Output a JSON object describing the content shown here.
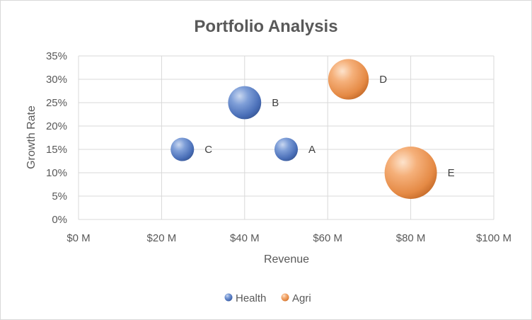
{
  "chart_data": {
    "type": "bubble",
    "title": "Portfolio Analysis",
    "xlabel": "Revenue",
    "ylabel": "Growth Rate",
    "xlim": [
      0,
      100
    ],
    "ylim": [
      0,
      0.35
    ],
    "x_ticks": [
      0,
      20,
      40,
      60,
      80,
      100
    ],
    "x_tick_labels": [
      "$0 M",
      "$20 M",
      "$40 M",
      "$60 M",
      "$80 M",
      "$100 M"
    ],
    "y_ticks": [
      0,
      0.05,
      0.1,
      0.15,
      0.2,
      0.25,
      0.3,
      0.35
    ],
    "y_tick_labels": [
      "0%",
      "5%",
      "10%",
      "15%",
      "20%",
      "25%",
      "30%",
      "35%"
    ],
    "grid": true,
    "legend_position": "bottom",
    "series": [
      {
        "name": "Health",
        "color": "#4472c4",
        "points": [
          {
            "label": "A",
            "x": 50,
            "y": 0.15,
            "size": 4
          },
          {
            "label": "B",
            "x": 40,
            "y": 0.25,
            "size": 8
          },
          {
            "label": "C",
            "x": 25,
            "y": 0.15,
            "size": 4
          }
        ]
      },
      {
        "name": "Agri",
        "color": "#ed7d31",
        "points": [
          {
            "label": "D",
            "x": 65,
            "y": 0.3,
            "size": 12
          },
          {
            "label": "E",
            "x": 80,
            "y": 0.1,
            "size": 20
          }
        ]
      }
    ]
  }
}
